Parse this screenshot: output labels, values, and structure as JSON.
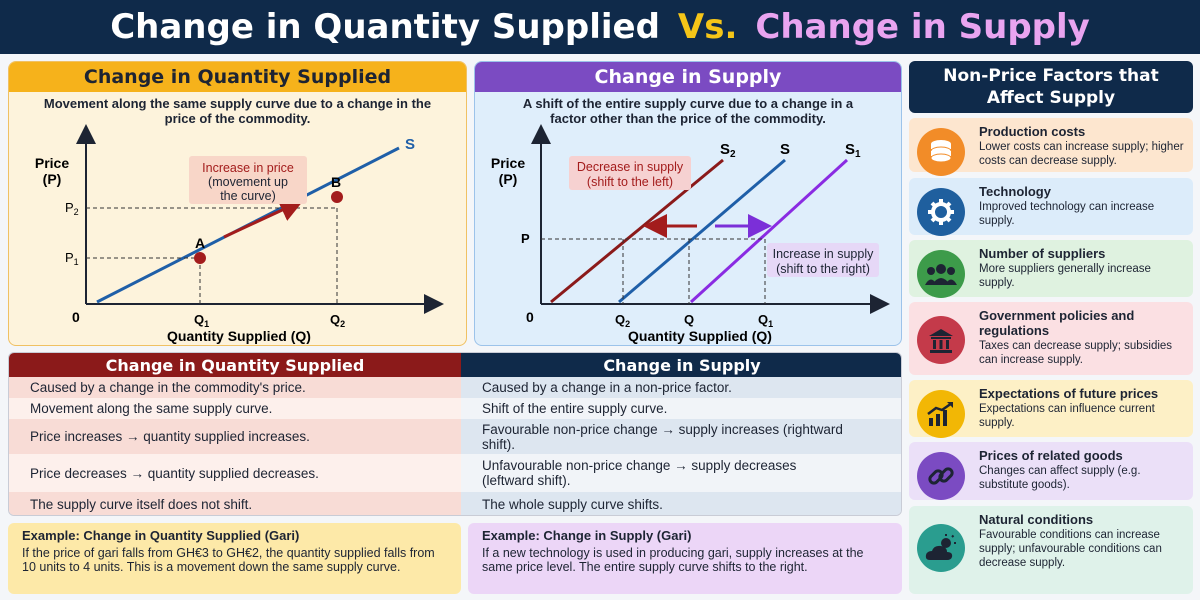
{
  "title": {
    "part1": "Change in Quantity Supplied",
    "vs": "Vs.",
    "part2": "Change in Supply"
  },
  "panel_qs": {
    "heading": "Change in Quantity Supplied",
    "description": "Movement along the same supply curve due to a change in the price of the commodity.",
    "graph": {
      "ylabel_1": "Price",
      "ylabel_2": "(P)",
      "xlabel": "Quantity Supplied (Q)",
      "origin": "0",
      "curve_label": "S",
      "p2": "P",
      "p2_sub": "2",
      "p1": "P",
      "p1_sub": "1",
      "q1": "Q",
      "q1_sub": "1",
      "q2": "Q",
      "q2_sub": "2",
      "point_a": "A",
      "point_b": "B",
      "callout_1": "Increase in price",
      "callout_2": "(movement up",
      "callout_3": "the curve)"
    }
  },
  "panel_s": {
    "heading": "Change in Supply",
    "description": "A shift of the entire supply curve due to a change in a factor other than the price of the commodity.",
    "graph": {
      "ylabel_1": "Price",
      "ylabel_2": "(P)",
      "xlabel": "Quantity Supplied (Q)",
      "origin": "0",
      "p": "P",
      "s2": "S",
      "s2_sub": "2",
      "s": "S",
      "s1": "S",
      "s1_sub": "1",
      "q2": "Q",
      "q2_sub": "2",
      "q": "Q",
      "q1": "Q",
      "q1_sub": "1",
      "decrease_1": "Decrease in supply",
      "decrease_2": "(shift to the left)",
      "increase_1": "Increase in supply",
      "increase_2": "(shift to the right)"
    }
  },
  "factors": {
    "heading_1": "Non-Price Factors that",
    "heading_2": "Affect Supply",
    "items": [
      {
        "title": "Production costs",
        "desc": "Lower costs can increase supply; higher costs can decrease supply.",
        "icon": "coins-icon",
        "bg": "#fde6cf",
        "icon_bg": "#f28c28"
      },
      {
        "title": "Technology",
        "desc": "Improved technology can increase supply.",
        "icon": "gear-icon",
        "bg": "#dcecfa",
        "icon_bg": "#1f5f9e"
      },
      {
        "title": "Number of suppliers",
        "desc": "More suppliers generally increase supply.",
        "icon": "people-icon",
        "bg": "#dff2e0",
        "icon_bg": "#3d9b4a"
      },
      {
        "title": "Government policies and regulations",
        "desc": "Taxes can decrease supply; subsidies can increase supply.",
        "icon": "government-building-icon",
        "bg": "#fbe0e3",
        "icon_bg": "#c43a4a"
      },
      {
        "title": "Expectations of future prices",
        "desc": "Expectations can influence current supply.",
        "icon": "rising-chart-icon",
        "bg": "#fdf0c6",
        "icon_bg": "#f2b705"
      },
      {
        "title": "Prices of related goods",
        "desc": "Changes can affect supply (e.g. substitute goods).",
        "icon": "chain-link-icon",
        "bg": "#ebe0f8",
        "icon_bg": "#7b4bc2"
      },
      {
        "title": "Natural conditions",
        "desc": "Favourable conditions can increase supply; unfavourable conditions can decrease supply.",
        "icon": "weather-icon",
        "bg": "#dff2ea",
        "icon_bg": "#2a9d8f"
      }
    ]
  },
  "table": {
    "col1_header": "Change in Quantity Supplied",
    "col2_header": "Change in Supply",
    "rows": [
      {
        "left": "Caused by a change in the commodity's price.",
        "right": "Caused by a change in a non-price factor."
      },
      {
        "left": "Movement along the same supply curve.",
        "right": "Shift of the entire supply curve."
      },
      {
        "left": "Price increases →  quantity supplied increases.",
        "right": "Favourable non-price change → supply increases (rightward shift)."
      },
      {
        "left": "Price decreases → quantity supplied decreases.",
        "right": "Unfavourable non-price change → supply decreases (leftward shift)."
      },
      {
        "left": "The supply curve itself does not shift.",
        "right": "The whole supply curve shifts."
      }
    ]
  },
  "examples": {
    "qs_title": "Example: Change in Quantity Supplied (Gari)",
    "qs_body": "If the price of gari falls from GH€3 to GH€2, the quantity supplied falls from 10 units to 4 units. This is a movement down the same supply curve.",
    "s_title": "Example: Change in Supply (Gari)",
    "s_body": "If a new technology is used in producing gari, supply increases at the same price level. The entire supply curve shifts to the right."
  },
  "colors": {
    "navy": "#0f2a4a",
    "amber": "#f6b21b",
    "purple": "#7b4bc2",
    "maroon": "#8b1a1a",
    "blue_curve": "#1f5fa8",
    "violet_curve": "#8a2be2"
  }
}
